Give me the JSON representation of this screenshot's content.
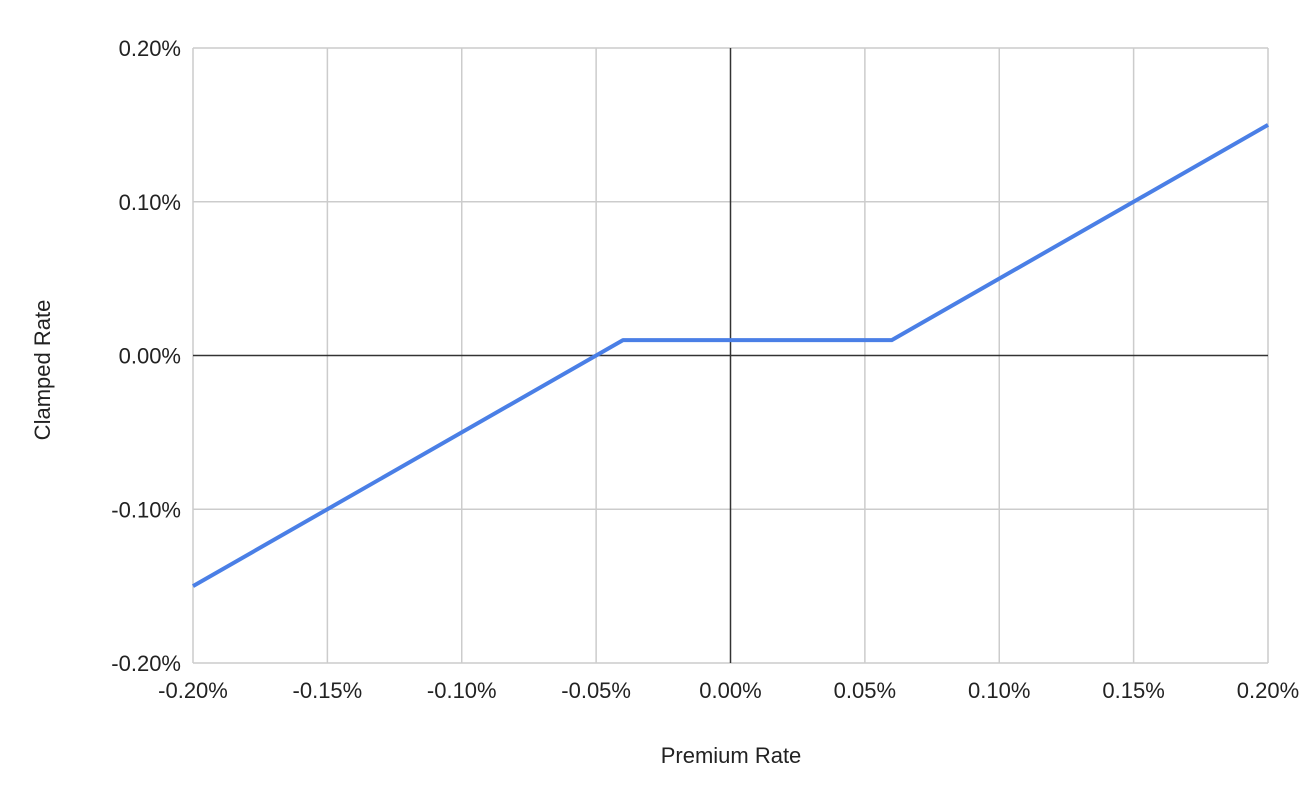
{
  "chart_data": {
    "type": "line",
    "title": "",
    "xlabel": "Premium Rate",
    "ylabel": "Clamped Rate",
    "xlim": [
      -0.2,
      0.2
    ],
    "ylim": [
      -0.2,
      0.2
    ],
    "x_ticks": [
      -0.2,
      -0.15,
      -0.1,
      -0.05,
      0.0,
      0.05,
      0.1,
      0.15,
      0.2
    ],
    "x_tick_labels": [
      "-0.20%",
      "-0.15%",
      "-0.10%",
      "-0.05%",
      "0.00%",
      "0.05%",
      "0.10%",
      "0.15%",
      "0.20%"
    ],
    "y_ticks": [
      0.2,
      0.1,
      0.0,
      -0.1,
      -0.2
    ],
    "y_tick_labels": [
      "0.20%",
      "0.10%",
      "0.00%",
      "-0.10%",
      "-0.20%"
    ],
    "grid": true,
    "series": [
      {
        "color": "#4a7fe6",
        "x": [
          -0.2,
          -0.04,
          0.06,
          0.2
        ],
        "y": [
          -0.15,
          0.01,
          0.01,
          0.15
        ]
      }
    ],
    "colors": {
      "grid": "#cccccc",
      "zero_axis": "#333333",
      "text": "#222222"
    }
  }
}
